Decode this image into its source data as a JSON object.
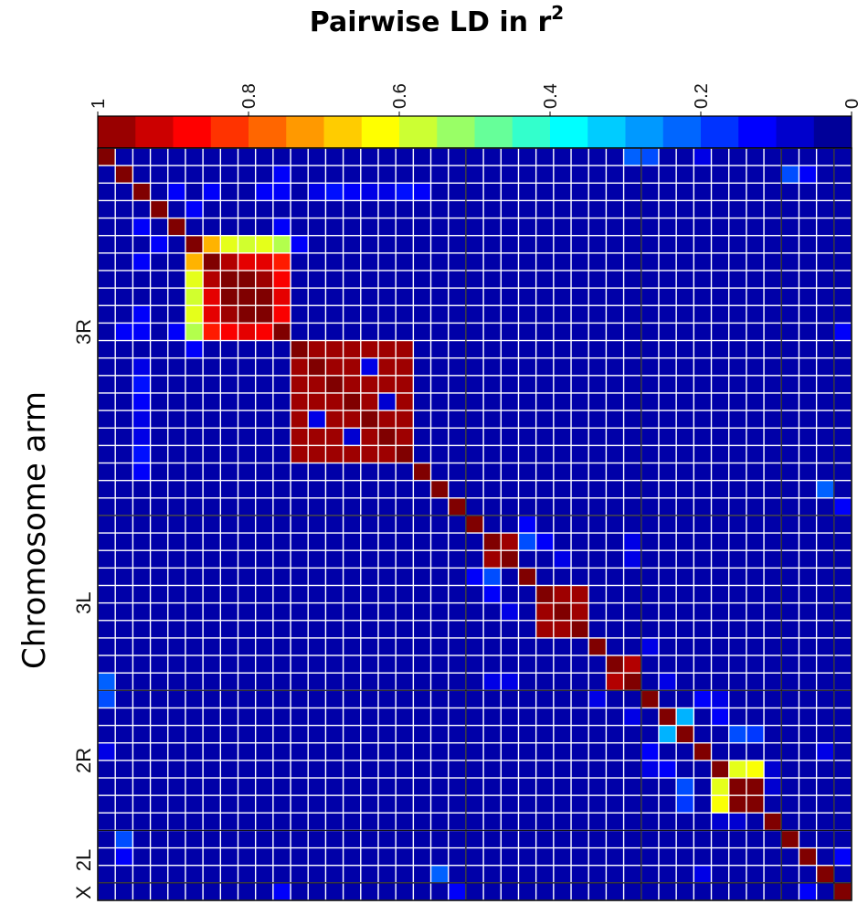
{
  "chart_data": {
    "type": "heatmap",
    "title": "Pairwise LD in r",
    "title_superscript": "2",
    "ylabel": "Chromosome arm",
    "n_loci": 43,
    "colormap": "jet",
    "color_range": [
      0,
      1
    ],
    "colorbar": {
      "placement": "top",
      "steps": 20,
      "tick_labels": [
        "1",
        "0.8",
        "0.6",
        "0.4",
        "0.2",
        "0"
      ],
      "tick_values": [
        1,
        0.8,
        0.6,
        0.4,
        0.2,
        0
      ]
    },
    "arms": [
      {
        "name": "3R",
        "start": 0,
        "end": 21
      },
      {
        "name": "3L",
        "start": 21,
        "end": 31
      },
      {
        "name": "2R",
        "start": 31,
        "end": 39
      },
      {
        "name": "2L",
        "start": 39,
        "end": 42
      },
      {
        "name": "X",
        "start": 42,
        "end": 43
      }
    ],
    "background_r2": 0.04,
    "blocks": [
      {
        "from": 5,
        "to": 10,
        "r2": 0.93
      },
      {
        "from": 11,
        "to": 17,
        "r2": 0.97
      },
      {
        "from": 22,
        "to": 23,
        "r2": 0.97
      },
      {
        "from": 25,
        "to": 27,
        "r2": 0.97
      },
      {
        "from": 29,
        "to": 30,
        "r2": 0.95
      },
      {
        "from": 35,
        "to": 37,
        "r2": 0.93
      }
    ],
    "cells": [
      {
        "i": 5,
        "j": 6,
        "r2": 0.7
      },
      {
        "i": 5,
        "j": 7,
        "r2": 0.6
      },
      {
        "i": 5,
        "j": 8,
        "r2": 0.58
      },
      {
        "i": 5,
        "j": 9,
        "r2": 0.6
      },
      {
        "i": 5,
        "j": 10,
        "r2": 0.55
      },
      {
        "i": 6,
        "j": 7,
        "r2": 0.95
      },
      {
        "i": 6,
        "j": 8,
        "r2": 0.9
      },
      {
        "i": 6,
        "j": 9,
        "r2": 0.9
      },
      {
        "i": 6,
        "j": 10,
        "r2": 0.85
      },
      {
        "i": 7,
        "j": 8,
        "r2": 1.0
      },
      {
        "i": 7,
        "j": 9,
        "r2": 0.97
      },
      {
        "i": 7,
        "j": 10,
        "r2": 0.88
      },
      {
        "i": 8,
        "j": 9,
        "r2": 1.0
      },
      {
        "i": 8,
        "j": 10,
        "r2": 0.9
      },
      {
        "i": 9,
        "j": 10,
        "r2": 0.88
      },
      {
        "i": 35,
        "j": 36,
        "r2": 0.6
      },
      {
        "i": 35,
        "j": 37,
        "r2": 0.62
      },
      {
        "i": 36,
        "j": 37,
        "r2": 1.0
      },
      {
        "i": 32,
        "j": 33,
        "r2": 0.3
      },
      {
        "i": 33,
        "j": 36,
        "r2": 0.2
      },
      {
        "i": 33,
        "j": 37,
        "r2": 0.18
      },
      {
        "i": 1,
        "j": 10,
        "r2": 0.12
      },
      {
        "i": 2,
        "j": 4,
        "r2": 0.12
      },
      {
        "i": 2,
        "j": 9,
        "r2": 0.12
      },
      {
        "i": 2,
        "j": 13,
        "r2": 0.14
      },
      {
        "i": 2,
        "j": 14,
        "r2": 0.12
      },
      {
        "i": 2,
        "j": 17,
        "r2": 0.14
      },
      {
        "i": 2,
        "j": 18,
        "r2": 0.12
      },
      {
        "i": 3,
        "j": 5,
        "r2": 0.12
      },
      {
        "i": 4,
        "j": 10,
        "r2": 0.12
      },
      {
        "i": 2,
        "j": 6,
        "r2": 0.12
      },
      {
        "i": 2,
        "j": 10,
        "r2": 0.12
      },
      {
        "i": 5,
        "j": 11,
        "r2": 0.12
      },
      {
        "i": 0,
        "j": 30,
        "r2": 0.22
      },
      {
        "i": 1,
        "j": 39,
        "r2": 0.2
      },
      {
        "i": 2,
        "j": 12,
        "r2": 0.1
      },
      {
        "i": 2,
        "j": 15,
        "r2": 0.1
      },
      {
        "i": 2,
        "j": 16,
        "r2": 0.1
      },
      {
        "i": 12,
        "j": 15,
        "r2": 0.1
      },
      {
        "i": 14,
        "j": 16,
        "r2": 0.08
      },
      {
        "i": 19,
        "j": 41,
        "r2": 0.22
      },
      {
        "i": 22,
        "j": 24,
        "r2": 0.2
      },
      {
        "i": 22,
        "j": 25,
        "r2": 0.12
      },
      {
        "i": 21,
        "j": 24,
        "r2": 0.12
      },
      {
        "i": 23,
        "j": 26,
        "r2": 0.1
      },
      {
        "i": 28,
        "j": 31,
        "r2": 0.1
      },
      {
        "i": 22,
        "j": 30,
        "r2": 0.1
      },
      {
        "i": 23,
        "j": 30,
        "r2": 0.1
      },
      {
        "i": 0,
        "j": 31,
        "r2": 0.2
      },
      {
        "i": 0,
        "j": 34,
        "r2": 0.1
      },
      {
        "i": 31,
        "j": 34,
        "r2": 0.12
      },
      {
        "i": 31,
        "j": 35,
        "r2": 0.1
      },
      {
        "i": 32,
        "j": 35,
        "r2": 0.12
      },
      {
        "i": 30,
        "j": 32,
        "r2": 0.1
      },
      {
        "i": 1,
        "j": 40,
        "r2": 0.12
      },
      {
        "i": 20,
        "j": 42,
        "r2": 0.12
      },
      {
        "i": 34,
        "j": 41,
        "r2": 0.1
      },
      {
        "i": 35,
        "j": 38,
        "r2": 0.08
      },
      {
        "i": 36,
        "j": 38,
        "r2": 0.08
      },
      {
        "i": 40,
        "j": 42,
        "r2": 0.12
      },
      {
        "i": 10,
        "j": 42,
        "r2": 0.12
      }
    ]
  }
}
